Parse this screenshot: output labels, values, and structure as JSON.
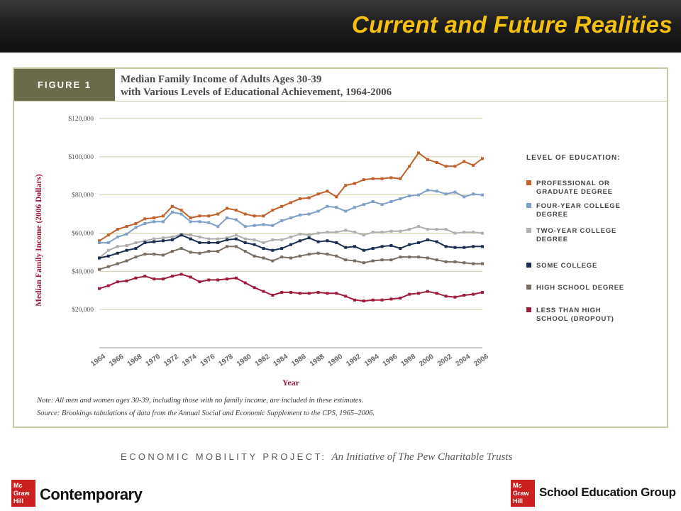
{
  "header": {
    "title": "Current and Future Realities"
  },
  "figure": {
    "label": "FIGURE 1",
    "title_line1": "Median Family Income of Adults Ages 30-39",
    "title_line2": "with Various Levels of Educational Achievement, 1964-2006",
    "note": "Note: All men and women ages 30-39, including those with no family income, are included in these estimates.",
    "source": "Source: Brookings tabulations of data from the Annual Social and Economic Supplement to the CPS, 1965–2006."
  },
  "footer": {
    "project": "ECONOMIC MOBILITY PROJECT:",
    "project_sub": "An Initiative of The Pew Charitable Trusts",
    "logo_left": "Contemporary",
    "logo_right": "School Education Group",
    "logo_mark": "Mc Graw Hill"
  },
  "chart_data": {
    "type": "line",
    "xlabel": "Year",
    "ylabel": "Median Family Income (2006 Dollars)",
    "ylim": [
      0,
      120000
    ],
    "yticks": [
      20000,
      40000,
      60000,
      80000,
      100000,
      120000
    ],
    "ytick_labels": [
      "$20,000",
      "$40,000",
      "$60,000",
      "$80,000",
      "$100,000",
      "$120,000"
    ],
    "xticks": [
      1964,
      1966,
      1968,
      1970,
      1972,
      1974,
      1976,
      1978,
      1980,
      1982,
      1984,
      1986,
      1988,
      1990,
      1992,
      1994,
      1996,
      1998,
      2000,
      2002,
      2004,
      2006
    ],
    "grid": true,
    "legend_title": "Level of Education:",
    "legend_position": "right",
    "x": [
      1964,
      1965,
      1966,
      1967,
      1968,
      1969,
      1970,
      1971,
      1972,
      1973,
      1974,
      1975,
      1976,
      1977,
      1978,
      1979,
      1980,
      1981,
      1982,
      1983,
      1984,
      1985,
      1986,
      1987,
      1988,
      1989,
      1990,
      1991,
      1992,
      1993,
      1994,
      1995,
      1996,
      1997,
      1998,
      1999,
      2000,
      2001,
      2002,
      2003,
      2004,
      2005,
      2006
    ],
    "series": [
      {
        "name": "Professional or Graduate Degree",
        "color": "#c0602a",
        "values": [
          56000,
          59000,
          62000,
          63500,
          65000,
          67500,
          68000,
          69000,
          74000,
          72000,
          68000,
          69000,
          69000,
          70000,
          73000,
          72000,
          70000,
          69000,
          69000,
          72000,
          74000,
          76000,
          78000,
          78500,
          80500,
          82000,
          79000,
          85000,
          86000,
          88000,
          88500,
          88500,
          89000,
          88500,
          95000,
          102000,
          98500,
          97000,
          95000,
          95000,
          97500,
          95500,
          99000
        ]
      },
      {
        "name": "Four-Year College Degree",
        "color": "#7fa0c8",
        "values": [
          55000,
          55000,
          58000,
          59500,
          63000,
          65000,
          66000,
          66000,
          71000,
          70000,
          66000,
          66000,
          65500,
          63500,
          68000,
          67000,
          63500,
          64000,
          64500,
          64000,
          66500,
          68000,
          69500,
          70000,
          71500,
          74000,
          73500,
          71500,
          73500,
          75000,
          76500,
          75000,
          76500,
          78000,
          79500,
          80000,
          82500,
          82000,
          80500,
          81500,
          79000,
          80500,
          80000
        ]
      },
      {
        "name": "Two-Year College Degree",
        "color": "#b0b0b0",
        "values": [
          47000,
          51000,
          53000,
          53500,
          55000,
          56000,
          57000,
          57500,
          58000,
          59500,
          59000,
          58000,
          57000,
          57000,
          57500,
          59000,
          57000,
          56500,
          55000,
          56500,
          56500,
          58000,
          59500,
          59000,
          60000,
          60500,
          60500,
          61500,
          60500,
          59000,
          60500,
          60500,
          61000,
          61000,
          62000,
          63500,
          62000,
          62000,
          62000,
          60000,
          60500,
          60500,
          60000
        ]
      },
      {
        "name": "Some College",
        "color": "#1a2f52",
        "values": [
          47000,
          48000,
          49500,
          51000,
          52000,
          55000,
          55500,
          56000,
          56500,
          59000,
          57000,
          55000,
          55000,
          55000,
          56500,
          57000,
          55000,
          54000,
          52000,
          51000,
          52000,
          54000,
          56000,
          57500,
          55500,
          56000,
          55000,
          52500,
          53000,
          51000,
          52000,
          53000,
          53500,
          52000,
          54000,
          55000,
          56500,
          55500,
          53000,
          52500,
          52500,
          53000,
          53000
        ]
      },
      {
        "name": "High School Degree",
        "color": "#7a6e62",
        "values": [
          41000,
          42500,
          44000,
          45500,
          47500,
          49000,
          49000,
          48500,
          50500,
          52000,
          50000,
          49500,
          50500,
          50500,
          53000,
          53000,
          50500,
          48000,
          47000,
          45500,
          47500,
          47000,
          48000,
          49000,
          49500,
          49000,
          48000,
          46000,
          45500,
          44500,
          45500,
          46000,
          46000,
          47500,
          47500,
          47500,
          47000,
          46000,
          45000,
          45000,
          44500,
          44000,
          44000
        ]
      },
      {
        "name": "Less than High School (Dropout)",
        "color": "#a01c3c",
        "values": [
          31000,
          32500,
          34500,
          35000,
          36500,
          37500,
          36000,
          36000,
          37500,
          38500,
          37000,
          34500,
          35500,
          35500,
          36000,
          36500,
          34000,
          31500,
          29500,
          27500,
          29000,
          29000,
          28500,
          28500,
          29000,
          28500,
          28500,
          27000,
          25000,
          24500,
          25000,
          25000,
          25500,
          26000,
          28000,
          28500,
          29500,
          28500,
          27000,
          26500,
          27500,
          28000,
          29000
        ]
      }
    ]
  }
}
